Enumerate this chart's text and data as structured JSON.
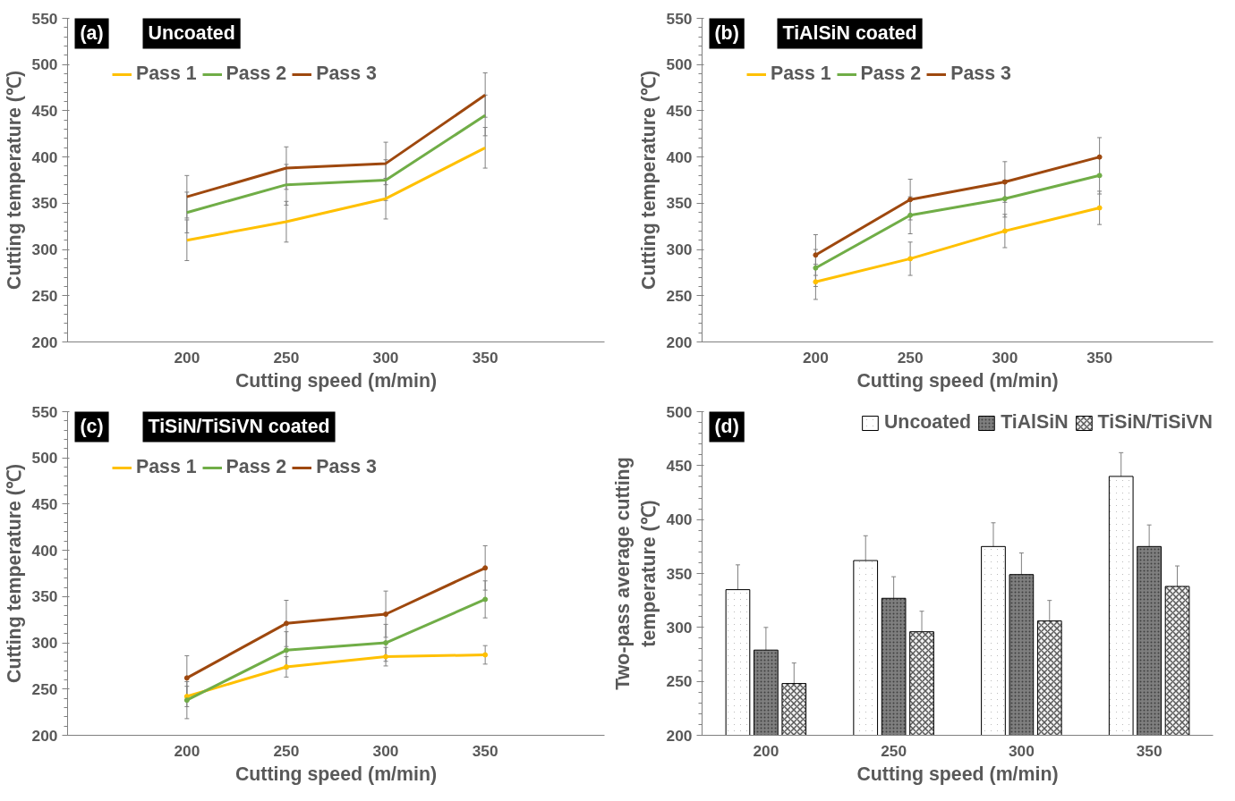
{
  "chart_data": [
    {
      "type": "line",
      "title": "(a)",
      "subtitle": "Uncoated",
      "xlabel": "Cutting speed (m/min)",
      "ylabel": "Cutting temperature (℃)",
      "categories": [
        "200",
        "250",
        "300",
        "350"
      ],
      "ylim": [
        200,
        550
      ],
      "yticks": [
        200,
        250,
        300,
        350,
        400,
        450,
        500,
        550
      ],
      "legend": "top left",
      "grid": false,
      "series": [
        {
          "name": "Pass 1",
          "color": "#ffc000",
          "values": [
            310,
            330,
            355,
            410
          ],
          "errors": [
            22,
            22,
            22,
            22
          ]
        },
        {
          "name": "Pass 2",
          "color": "#70ad47",
          "values": [
            340,
            370,
            375,
            445
          ],
          "errors": [
            22,
            22,
            22,
            22
          ]
        },
        {
          "name": "Pass 3",
          "color": "#9e480e",
          "values": [
            357,
            388,
            393,
            467
          ],
          "errors": [
            23,
            23,
            23,
            24
          ]
        }
      ]
    },
    {
      "type": "line",
      "title": "(b)",
      "subtitle": "TiAlSiN coated",
      "xlabel": "Cutting speed (m/min)",
      "ylabel": "Cutting temperature (℃)",
      "categories": [
        "200",
        "250",
        "300",
        "350"
      ],
      "ylim": [
        200,
        550
      ],
      "yticks": [
        200,
        250,
        300,
        350,
        400,
        450,
        500,
        550
      ],
      "legend": "top left",
      "grid": false,
      "marker": "circle",
      "series": [
        {
          "name": "Pass 1",
          "color": "#ffc000",
          "values": [
            265,
            290,
            320,
            345
          ],
          "errors": [
            19,
            18,
            18,
            18
          ]
        },
        {
          "name": "Pass 2",
          "color": "#70ad47",
          "values": [
            280,
            337,
            355,
            380
          ],
          "errors": [
            20,
            20,
            20,
            20
          ]
        },
        {
          "name": "Pass 3",
          "color": "#9e480e",
          "values": [
            294,
            354,
            373,
            400
          ],
          "errors": [
            22,
            22,
            22,
            21
          ]
        }
      ]
    },
    {
      "type": "line",
      "title": "(c)",
      "subtitle": "TiSiN/TiSiVN coated",
      "xlabel": "Cutting speed (m/min)",
      "ylabel": "Cutting temperature (℃)",
      "categories": [
        "200",
        "250",
        "300",
        "350"
      ],
      "ylim": [
        200,
        550
      ],
      "yticks": [
        200,
        250,
        300,
        350,
        400,
        450,
        500,
        550
      ],
      "legend": "top left",
      "grid": false,
      "marker": "circle",
      "series": [
        {
          "name": "Pass 1",
          "color": "#ffc000",
          "values": [
            242,
            274,
            285,
            287
          ],
          "errors": [
            11,
            11,
            10,
            10
          ]
        },
        {
          "name": "Pass 2",
          "color": "#70ad47",
          "values": [
            238,
            292,
            300,
            347
          ],
          "errors": [
            20,
            20,
            20,
            20
          ]
        },
        {
          "name": "Pass 3",
          "color": "#9e480e",
          "values": [
            262,
            321,
            331,
            381
          ],
          "errors": [
            24,
            25,
            25,
            24
          ]
        }
      ]
    },
    {
      "type": "bar",
      "title": "(d)",
      "xlabel": "Cutting speed (m/min)",
      "ylabel": "Two-pass average cutting temperature (℃)",
      "categories": [
        "200",
        "250",
        "300",
        "350"
      ],
      "ylim": [
        200,
        500
      ],
      "yticks": [
        200,
        250,
        300,
        350,
        400,
        450,
        500
      ],
      "legend": "top",
      "grid": false,
      "series": [
        {
          "name": "Uncoated",
          "color": "#000000",
          "values": [
            335,
            362,
            375,
            440
          ],
          "errors": [
            23,
            23,
            22,
            22
          ]
        },
        {
          "name": "TiAlSiN",
          "color": "#7f7f7f",
          "values": [
            279,
            327,
            349,
            375
          ],
          "errors": [
            21,
            20,
            20,
            20
          ]
        },
        {
          "name": "TiSiN/TiSiVN",
          "color": "#f2f2f2",
          "values": [
            248,
            296,
            306,
            338
          ],
          "errors": [
            19,
            19,
            19,
            19
          ]
        }
      ]
    }
  ]
}
